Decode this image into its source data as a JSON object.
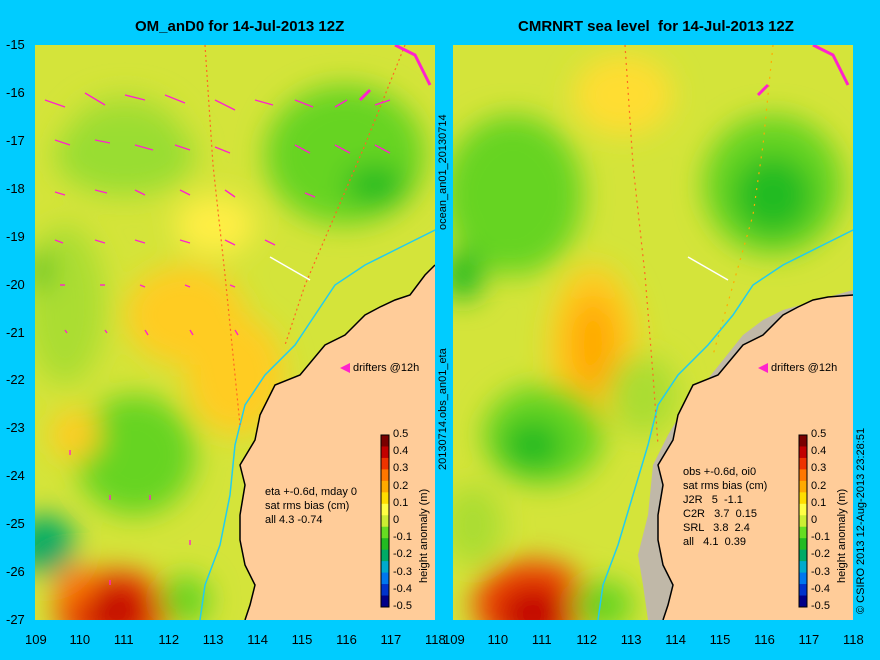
{
  "figure": {
    "left_title": "OM_anD0 for 14-Jul-2013 12Z",
    "right_title": "CMRNRT sea level  for 14-Jul-2013 12Z",
    "left_side_label": "ocean_an01_20130714",
    "middle_side_label": "20130714.obs_an01_eta",
    "credit": "© CSIRO 2013   12-Aug-2013 23:28:51",
    "colorbar_label": "height anomaly (m)",
    "drifters_label": "drifters @12h"
  },
  "axes": {
    "lat_ticks": [
      "-15",
      "-16",
      "-17",
      "-18",
      "-19",
      "-20",
      "-21",
      "-22",
      "-23",
      "-24",
      "-25",
      "-26",
      "-27"
    ],
    "lon_ticks": [
      "109",
      "110",
      "111",
      "112",
      "113",
      "114",
      "115",
      "116",
      "117",
      "118"
    ],
    "lon_range": [
      109,
      118
    ],
    "lat_range": [
      -27,
      -15
    ]
  },
  "colorbar": {
    "ticks": [
      "0.5",
      "0.4",
      "0.3",
      "0.2",
      "0.1",
      "0",
      "-0.1",
      "-0.2",
      "-0.3",
      "-0.4",
      "-0.5"
    ],
    "colors": [
      "#7a0000",
      "#c20000",
      "#ee3300",
      "#ff7700",
      "#ffaa00",
      "#ffdd00",
      "#ffff44",
      "#ccee33",
      "#66dd22",
      "#22bb22",
      "#00aa66",
      "#00aacc",
      "#0077ee",
      "#0033cc",
      "#000088"
    ]
  },
  "left_panel": {
    "stats": [
      "eta +-0.6d, mday 0",
      "sat rms bias (cm)",
      "all 4.3 -0.74"
    ]
  },
  "right_panel": {
    "stats": [
      "obs +-0.6d, oi0",
      "sat rms bias (cm)",
      "J2R   5  -1.1",
      "C2R   3.7  0.15",
      "SRL   3.8  2.4",
      "all   4.1  0.39"
    ]
  },
  "colors": {
    "background": "#00ccff",
    "land": "#ffcc99",
    "coast_shelf": "#c0b8a8",
    "isobath": "#22ccee",
    "drifters": "#ff22cc"
  }
}
